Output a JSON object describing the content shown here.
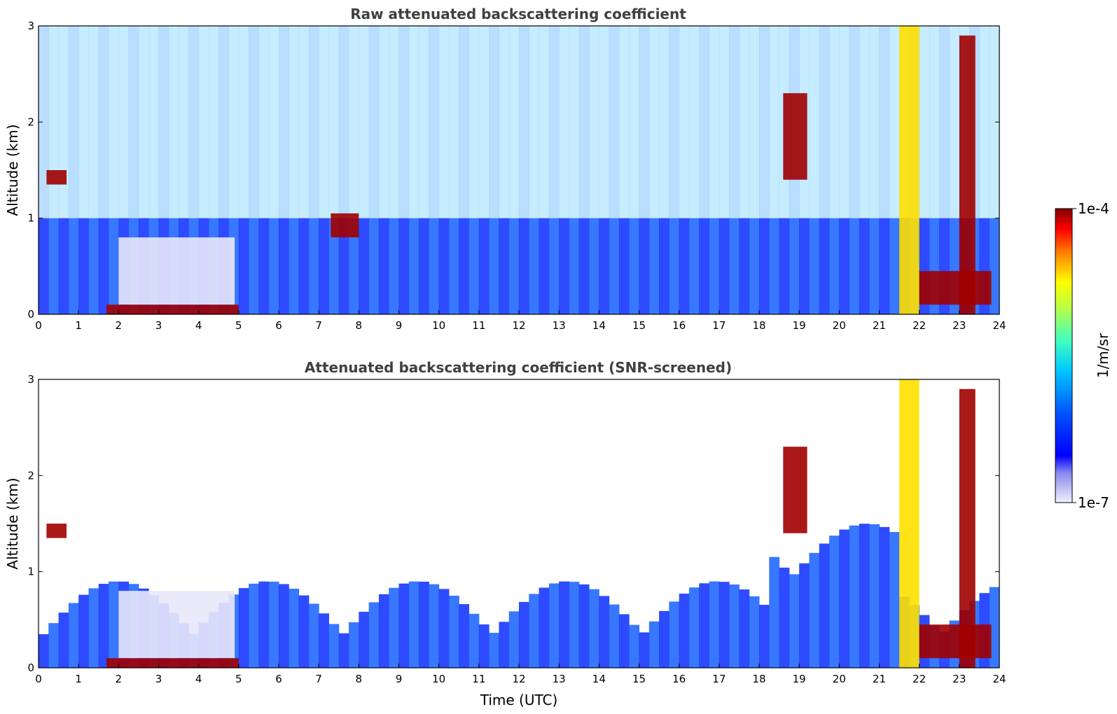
{
  "chart_data": [
    {
      "type": "heatmap",
      "title": "Raw attenuated backscattering coefficient",
      "xlabel": "",
      "ylabel": "Altitude (km)",
      "xlim": [
        0,
        24
      ],
      "ylim": [
        0,
        3
      ],
      "xticks": [
        "0",
        "1",
        "2",
        "3",
        "4",
        "5",
        "6",
        "7",
        "8",
        "9",
        "10",
        "11",
        "12",
        "13",
        "14",
        "15",
        "16",
        "17",
        "18",
        "19",
        "20",
        "21",
        "22",
        "23",
        "24"
      ],
      "yticks": [
        "0",
        "1",
        "2",
        "3"
      ],
      "features": [
        {
          "x": [
            0.2,
            0.7
          ],
          "y": [
            1.35,
            1.5
          ],
          "level": "high"
        },
        {
          "x": [
            1.7,
            5.0
          ],
          "y": [
            0.0,
            0.1
          ],
          "level": "high"
        },
        {
          "x": [
            7.3,
            8.0
          ],
          "y": [
            0.8,
            1.05
          ],
          "level": "high"
        },
        {
          "x": [
            18.6,
            19.2
          ],
          "y": [
            1.4,
            2.3
          ],
          "level": "high"
        },
        {
          "x": [
            21.5,
            22.0
          ],
          "y": [
            0.0,
            3.0
          ],
          "level": "medium"
        },
        {
          "x": [
            22.0,
            23.8
          ],
          "y": [
            0.1,
            0.45
          ],
          "level": "high"
        },
        {
          "x": [
            23.0,
            23.4
          ],
          "y": [
            0.0,
            2.9
          ],
          "level": "high"
        }
      ]
    },
    {
      "type": "heatmap",
      "title": "Attenuated backscattering coefficient (SNR-screened)",
      "xlabel": "Time (UTC)",
      "ylabel": "Altitude (km)",
      "xlim": [
        0,
        24
      ],
      "ylim": [
        0,
        3
      ],
      "xticks": [
        "0",
        "1",
        "2",
        "3",
        "4",
        "5",
        "6",
        "7",
        "8",
        "9",
        "10",
        "11",
        "12",
        "13",
        "14",
        "15",
        "16",
        "17",
        "18",
        "19",
        "20",
        "21",
        "22",
        "23",
        "24"
      ],
      "yticks": [
        "0",
        "1",
        "2",
        "3"
      ],
      "features": [
        {
          "x": [
            0.2,
            0.7
          ],
          "y": [
            1.35,
            1.5
          ],
          "level": "high"
        },
        {
          "x": [
            1.7,
            5.0
          ],
          "y": [
            0.0,
            0.1
          ],
          "level": "high"
        },
        {
          "x": [
            18.6,
            19.2
          ],
          "y": [
            1.4,
            2.3
          ],
          "level": "high"
        },
        {
          "x": [
            21.5,
            22.0
          ],
          "y": [
            0.0,
            3.0
          ],
          "level": "medium"
        },
        {
          "x": [
            22.0,
            23.8
          ],
          "y": [
            0.1,
            0.45
          ],
          "level": "high"
        },
        {
          "x": [
            23.0,
            23.4
          ],
          "y": [
            0.0,
            2.9
          ],
          "level": "high"
        }
      ]
    }
  ],
  "colorbar": {
    "label": "1/m/sr",
    "max_label": "1e-4",
    "min_label": "1e-7",
    "scale": "log",
    "colormap": "jet"
  }
}
